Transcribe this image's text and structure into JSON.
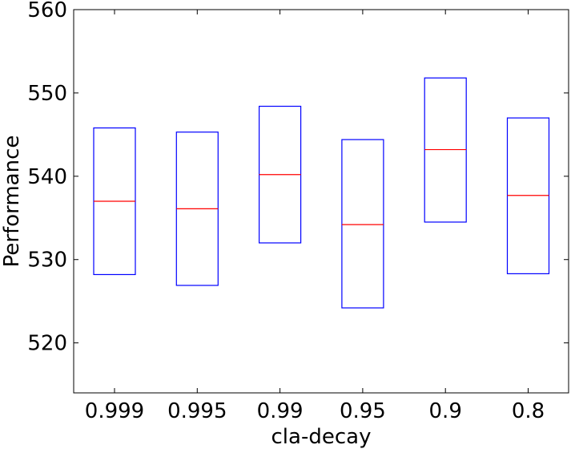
{
  "chart_data": {
    "type": "box",
    "xlabel": "cla-decay",
    "ylabel": "Performance",
    "ylim": [
      514,
      560
    ],
    "yticks": [
      520,
      530,
      540,
      550,
      560
    ],
    "categories": [
      "0.999",
      "0.995",
      "0.99",
      "0.95",
      "0.9",
      "0.8"
    ],
    "boxes": [
      {
        "category": "0.999",
        "q1": 528.2,
        "median": 537.0,
        "q3": 545.8
      },
      {
        "category": "0.995",
        "q1": 526.9,
        "median": 536.1,
        "q3": 545.3
      },
      {
        "category": "0.99",
        "q1": 532.0,
        "median": 540.2,
        "q3": 548.4
      },
      {
        "category": "0.95",
        "q1": 524.2,
        "median": 534.2,
        "q3": 544.4
      },
      {
        "category": "0.9",
        "q1": 534.5,
        "median": 543.2,
        "q3": 551.8
      },
      {
        "category": "0.8",
        "q1": 528.3,
        "median": 537.7,
        "q3": 547.0
      }
    ],
    "box_color": "#0000ff",
    "median_color": "#ff0000",
    "grid": false
  }
}
